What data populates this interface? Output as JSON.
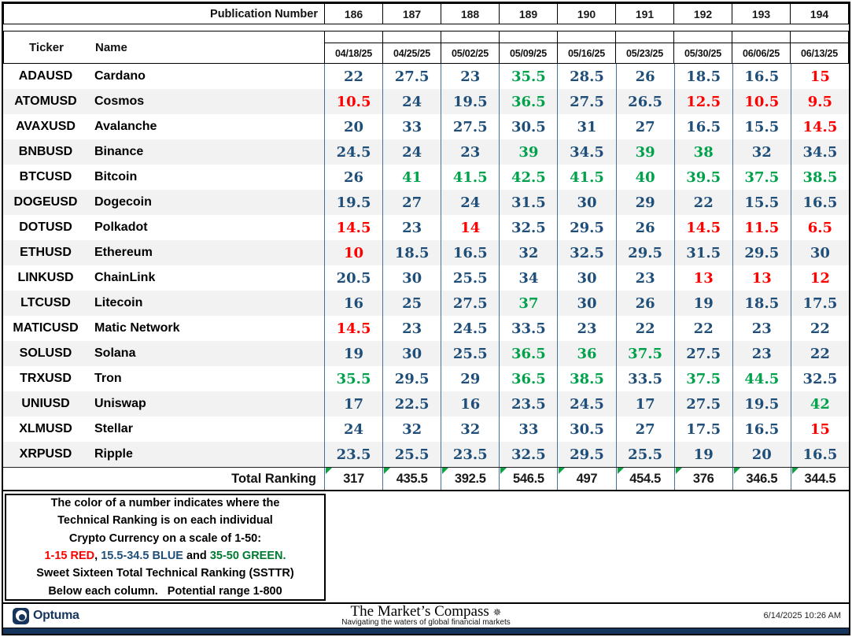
{
  "colors": {
    "red": "#ff0000",
    "blue": "#1f4e79",
    "green": "#00a14b",
    "navy": "#16355d"
  },
  "header": {
    "publication_label": "Publication Number",
    "publication_numbers": [
      "186",
      "187",
      "188",
      "189",
      "190",
      "191",
      "192",
      "193",
      "194"
    ],
    "dates": [
      "04/18/25",
      "04/25/25",
      "05/02/25",
      "05/09/25",
      "05/16/25",
      "05/23/25",
      "05/30/25",
      "06/06/25",
      "06/13/25"
    ],
    "ticker_label": "Ticker",
    "name_label": "Name"
  },
  "rows": [
    {
      "ticker": "ADAUSD",
      "name": "Cardano",
      "values": [
        {
          "v": "22",
          "c": "blue"
        },
        {
          "v": "27.5",
          "c": "blue"
        },
        {
          "v": "23",
          "c": "blue"
        },
        {
          "v": "35.5",
          "c": "green"
        },
        {
          "v": "28.5",
          "c": "blue"
        },
        {
          "v": "26",
          "c": "blue"
        },
        {
          "v": "18.5",
          "c": "blue"
        },
        {
          "v": "16.5",
          "c": "blue"
        },
        {
          "v": "15",
          "c": "red"
        }
      ]
    },
    {
      "ticker": "ATOMUSD",
      "name": "Cosmos",
      "values": [
        {
          "v": "10.5",
          "c": "red"
        },
        {
          "v": "24",
          "c": "blue"
        },
        {
          "v": "19.5",
          "c": "blue"
        },
        {
          "v": "36.5",
          "c": "green"
        },
        {
          "v": "27.5",
          "c": "blue"
        },
        {
          "v": "26.5",
          "c": "blue"
        },
        {
          "v": "12.5",
          "c": "red"
        },
        {
          "v": "10.5",
          "c": "red"
        },
        {
          "v": "9.5",
          "c": "red"
        }
      ]
    },
    {
      "ticker": "AVAXUSD",
      "name": "Avalanche",
      "values": [
        {
          "v": "20",
          "c": "blue"
        },
        {
          "v": "33",
          "c": "blue"
        },
        {
          "v": "27.5",
          "c": "blue"
        },
        {
          "v": "30.5",
          "c": "blue"
        },
        {
          "v": "31",
          "c": "blue"
        },
        {
          "v": "27",
          "c": "blue"
        },
        {
          "v": "16.5",
          "c": "blue"
        },
        {
          "v": "15.5",
          "c": "blue"
        },
        {
          "v": "14.5",
          "c": "red"
        }
      ]
    },
    {
      "ticker": "BNBUSD",
      "name": "Binance",
      "values": [
        {
          "v": "24.5",
          "c": "blue"
        },
        {
          "v": "24",
          "c": "blue"
        },
        {
          "v": "23",
          "c": "blue"
        },
        {
          "v": "39",
          "c": "green"
        },
        {
          "v": "34.5",
          "c": "blue"
        },
        {
          "v": "39",
          "c": "green"
        },
        {
          "v": "38",
          "c": "green"
        },
        {
          "v": "32",
          "c": "blue"
        },
        {
          "v": "34.5",
          "c": "blue"
        }
      ]
    },
    {
      "ticker": "BTCUSD",
      "name": "Bitcoin",
      "values": [
        {
          "v": "26",
          "c": "blue"
        },
        {
          "v": "41",
          "c": "green"
        },
        {
          "v": "41.5",
          "c": "green"
        },
        {
          "v": "42.5",
          "c": "green"
        },
        {
          "v": "41.5",
          "c": "green"
        },
        {
          "v": "40",
          "c": "green"
        },
        {
          "v": "39.5",
          "c": "green"
        },
        {
          "v": "37.5",
          "c": "green"
        },
        {
          "v": "38.5",
          "c": "green"
        }
      ]
    },
    {
      "ticker": "DOGEUSD",
      "name": "Dogecoin",
      "values": [
        {
          "v": "19.5",
          "c": "blue"
        },
        {
          "v": "27",
          "c": "blue"
        },
        {
          "v": "24",
          "c": "blue"
        },
        {
          "v": "31.5",
          "c": "blue"
        },
        {
          "v": "30",
          "c": "blue"
        },
        {
          "v": "29",
          "c": "blue"
        },
        {
          "v": "22",
          "c": "blue"
        },
        {
          "v": "15.5",
          "c": "blue"
        },
        {
          "v": "16.5",
          "c": "blue"
        }
      ]
    },
    {
      "ticker": "DOTUSD",
      "name": "Polkadot",
      "values": [
        {
          "v": "14.5",
          "c": "red"
        },
        {
          "v": "23",
          "c": "blue"
        },
        {
          "v": "14",
          "c": "red"
        },
        {
          "v": "32.5",
          "c": "blue"
        },
        {
          "v": "29.5",
          "c": "blue"
        },
        {
          "v": "26",
          "c": "blue"
        },
        {
          "v": "14.5",
          "c": "red"
        },
        {
          "v": "11.5",
          "c": "red"
        },
        {
          "v": "6.5",
          "c": "red"
        }
      ]
    },
    {
      "ticker": "ETHUSD",
      "name": "Ethereum",
      "values": [
        {
          "v": "10",
          "c": "red"
        },
        {
          "v": "18.5",
          "c": "blue"
        },
        {
          "v": "16.5",
          "c": "blue"
        },
        {
          "v": "32",
          "c": "blue"
        },
        {
          "v": "32.5",
          "c": "blue"
        },
        {
          "v": "29.5",
          "c": "blue"
        },
        {
          "v": "31.5",
          "c": "blue"
        },
        {
          "v": "29.5",
          "c": "blue"
        },
        {
          "v": "30",
          "c": "blue"
        }
      ]
    },
    {
      "ticker": "LINKUSD",
      "name": "ChainLink",
      "values": [
        {
          "v": "20.5",
          "c": "blue"
        },
        {
          "v": "30",
          "c": "blue"
        },
        {
          "v": "25.5",
          "c": "blue"
        },
        {
          "v": "34",
          "c": "blue"
        },
        {
          "v": "30",
          "c": "blue"
        },
        {
          "v": "23",
          "c": "blue"
        },
        {
          "v": "13",
          "c": "red"
        },
        {
          "v": "13",
          "c": "red"
        },
        {
          "v": "12",
          "c": "red"
        }
      ]
    },
    {
      "ticker": "LTCUSD",
      "name": "Litecoin",
      "values": [
        {
          "v": "16",
          "c": "blue"
        },
        {
          "v": "25",
          "c": "blue"
        },
        {
          "v": "27.5",
          "c": "blue"
        },
        {
          "v": "37",
          "c": "green"
        },
        {
          "v": "30",
          "c": "blue"
        },
        {
          "v": "26",
          "c": "blue"
        },
        {
          "v": "19",
          "c": "blue"
        },
        {
          "v": "18.5",
          "c": "blue"
        },
        {
          "v": "17.5",
          "c": "blue"
        }
      ]
    },
    {
      "ticker": "MATICUSD",
      "name": "Matic Network",
      "values": [
        {
          "v": "14.5",
          "c": "red"
        },
        {
          "v": "23",
          "c": "blue"
        },
        {
          "v": "24.5",
          "c": "blue"
        },
        {
          "v": "33.5",
          "c": "blue"
        },
        {
          "v": "23",
          "c": "blue"
        },
        {
          "v": "22",
          "c": "blue"
        },
        {
          "v": "22",
          "c": "blue"
        },
        {
          "v": "23",
          "c": "blue"
        },
        {
          "v": "22",
          "c": "blue"
        }
      ]
    },
    {
      "ticker": "SOLUSD",
      "name": "Solana",
      "values": [
        {
          "v": "19",
          "c": "blue"
        },
        {
          "v": "30",
          "c": "blue"
        },
        {
          "v": "25.5",
          "c": "blue"
        },
        {
          "v": "36.5",
          "c": "green"
        },
        {
          "v": "36",
          "c": "green"
        },
        {
          "v": "37.5",
          "c": "green"
        },
        {
          "v": "27.5",
          "c": "blue"
        },
        {
          "v": "23",
          "c": "blue"
        },
        {
          "v": "22",
          "c": "blue"
        }
      ]
    },
    {
      "ticker": "TRXUSD",
      "name": "Tron",
      "values": [
        {
          "v": "35.5",
          "c": "green"
        },
        {
          "v": "29.5",
          "c": "blue"
        },
        {
          "v": "29",
          "c": "blue"
        },
        {
          "v": "36.5",
          "c": "green"
        },
        {
          "v": "38.5",
          "c": "green"
        },
        {
          "v": "33.5",
          "c": "blue"
        },
        {
          "v": "37.5",
          "c": "green"
        },
        {
          "v": "44.5",
          "c": "green"
        },
        {
          "v": "32.5",
          "c": "blue"
        }
      ]
    },
    {
      "ticker": "UNIUSD",
      "name": "Uniswap",
      "values": [
        {
          "v": "17",
          "c": "blue"
        },
        {
          "v": "22.5",
          "c": "blue"
        },
        {
          "v": "16",
          "c": "blue"
        },
        {
          "v": "23.5",
          "c": "blue"
        },
        {
          "v": "24.5",
          "c": "blue"
        },
        {
          "v": "17",
          "c": "blue"
        },
        {
          "v": "27.5",
          "c": "blue"
        },
        {
          "v": "19.5",
          "c": "blue"
        },
        {
          "v": "42",
          "c": "green"
        }
      ]
    },
    {
      "ticker": "XLMUSD",
      "name": "Stellar",
      "values": [
        {
          "v": "24",
          "c": "blue"
        },
        {
          "v": "32",
          "c": "blue"
        },
        {
          "v": "32",
          "c": "blue"
        },
        {
          "v": "33",
          "c": "blue"
        },
        {
          "v": "30.5",
          "c": "blue"
        },
        {
          "v": "27",
          "c": "blue"
        },
        {
          "v": "17.5",
          "c": "blue"
        },
        {
          "v": "16.5",
          "c": "blue"
        },
        {
          "v": "15",
          "c": "red"
        }
      ]
    },
    {
      "ticker": "XRPUSD",
      "name": "Ripple",
      "values": [
        {
          "v": "23.5",
          "c": "blue"
        },
        {
          "v": "25.5",
          "c": "blue"
        },
        {
          "v": "23.5",
          "c": "blue"
        },
        {
          "v": "32.5",
          "c": "blue"
        },
        {
          "v": "29.5",
          "c": "blue"
        },
        {
          "v": "25.5",
          "c": "blue"
        },
        {
          "v": "19",
          "c": "blue"
        },
        {
          "v": "20",
          "c": "blue"
        },
        {
          "v": "16.5",
          "c": "blue"
        }
      ]
    }
  ],
  "total": {
    "label": "Total Ranking",
    "values": [
      "317",
      "435.5",
      "392.5",
      "546.5",
      "497",
      "454.5",
      "376",
      "346.5",
      "344.5"
    ]
  },
  "legend": {
    "line1": "The color of a number indicates where the",
    "line2": "Technical Ranking is on each individual",
    "line3": "Crypto Currency on a scale of 1-50:",
    "line4_red": "1-15 RED",
    "line4_sep1": ", ",
    "line4_blue": "15.5-34.5 BLUE",
    "line4_sep2": " and ",
    "line4_green": "35-50 GREEN.",
    "line5": "Sweet Sixteen Total Technical Ranking (SSTTR)",
    "line6": "Below each column.   Potential range 1-800"
  },
  "footer": {
    "brand": "Optuma",
    "masthead": "The Market’s Compass",
    "compass_icon": "✵",
    "tagline": "Navigating the waters of global financial markets",
    "timestamp": "6/14/2025 10:26 AM"
  }
}
